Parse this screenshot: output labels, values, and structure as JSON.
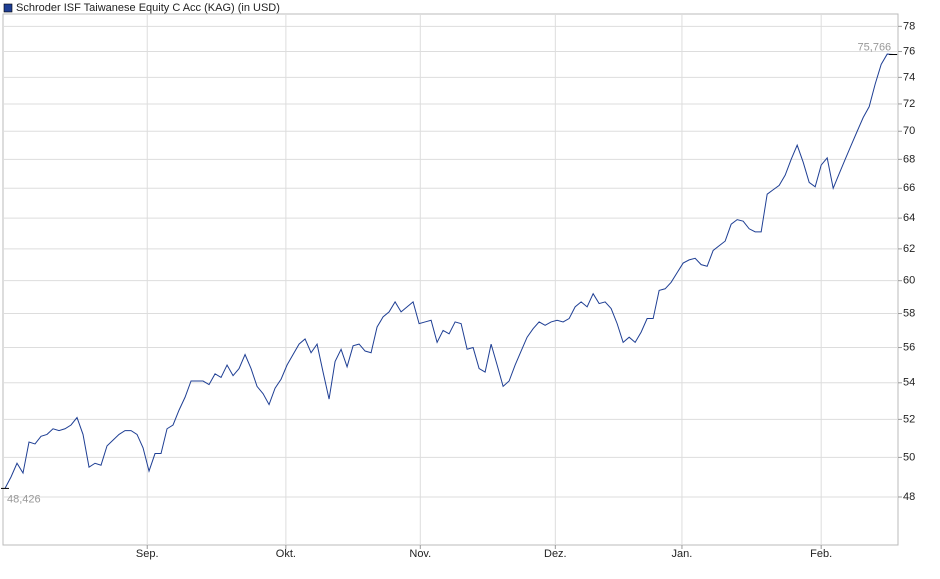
{
  "chart_data": {
    "type": "line",
    "series": [
      {
        "name": "Schroder ISF Taiwanese Equity C Acc (KAG) (in USD)",
        "color": "#1f3f94",
        "values": [
          48.426,
          49.0,
          49.7,
          49.2,
          50.8,
          50.7,
          51.1,
          51.2,
          51.5,
          51.4,
          51.5,
          51.7,
          52.1,
          51.2,
          49.5,
          49.7,
          49.6,
          50.6,
          50.9,
          51.2,
          51.4,
          51.4,
          51.2,
          50.5,
          49.3,
          50.2,
          50.2,
          51.5,
          51.7,
          52.5,
          53.2,
          54.1,
          54.1,
          54.1,
          53.9,
          54.5,
          54.3,
          55.0,
          54.4,
          54.8,
          55.6,
          54.8,
          53.8,
          53.4,
          52.8,
          53.7,
          54.2,
          55.0,
          55.6,
          56.2,
          56.5,
          55.7,
          56.2,
          54.6,
          53.1,
          55.2,
          55.9,
          54.9,
          56.1,
          56.2,
          55.8,
          55.7,
          57.2,
          57.8,
          58.1,
          58.7,
          58.1,
          58.4,
          58.7,
          57.4,
          57.5,
          57.6,
          56.3,
          57.0,
          56.8,
          57.5,
          57.4,
          55.9,
          56.0,
          54.8,
          54.6,
          56.2,
          55.0,
          53.8,
          54.1,
          55.0,
          55.8,
          56.6,
          57.1,
          57.5,
          57.3,
          57.5,
          57.6,
          57.5,
          57.7,
          58.4,
          58.7,
          58.4,
          59.2,
          58.6,
          58.7,
          58.3,
          57.4,
          56.3,
          56.6,
          56.3,
          56.9,
          57.7,
          57.7,
          59.4,
          59.5,
          59.9,
          60.5,
          61.1,
          61.3,
          61.4,
          61.0,
          60.9,
          61.9,
          62.2,
          62.5,
          63.6,
          63.9,
          63.8,
          63.3,
          63.1,
          63.1,
          65.6,
          65.9,
          66.2,
          66.9,
          68.0,
          69.0,
          67.8,
          66.4,
          66.1,
          67.6,
          68.1,
          66.0,
          67.0,
          68.0,
          69.0,
          70.0,
          71.0,
          71.8,
          73.5,
          75.0,
          75.8,
          75.766
        ]
      }
    ],
    "first_value_label": "48,426",
    "last_value_label": "75,766",
    "xlim": [
      0,
      148.8
    ],
    "xticks": [
      {
        "value": 23.7,
        "label": "Sep."
      },
      {
        "value": 46.8,
        "label": "Okt."
      },
      {
        "value": 69.2,
        "label": "Nov."
      },
      {
        "value": 91.7,
        "label": "Dez."
      },
      {
        "value": 112.8,
        "label": "Jan."
      },
      {
        "value": 136,
        "label": "Feb."
      }
    ],
    "ylim": [
      45.68,
      79.0
    ],
    "yticks": [
      48,
      50,
      52,
      54,
      56,
      58,
      60,
      62,
      64,
      66,
      68,
      70,
      72,
      74,
      76,
      78
    ],
    "log_scale": true,
    "grid": true
  }
}
